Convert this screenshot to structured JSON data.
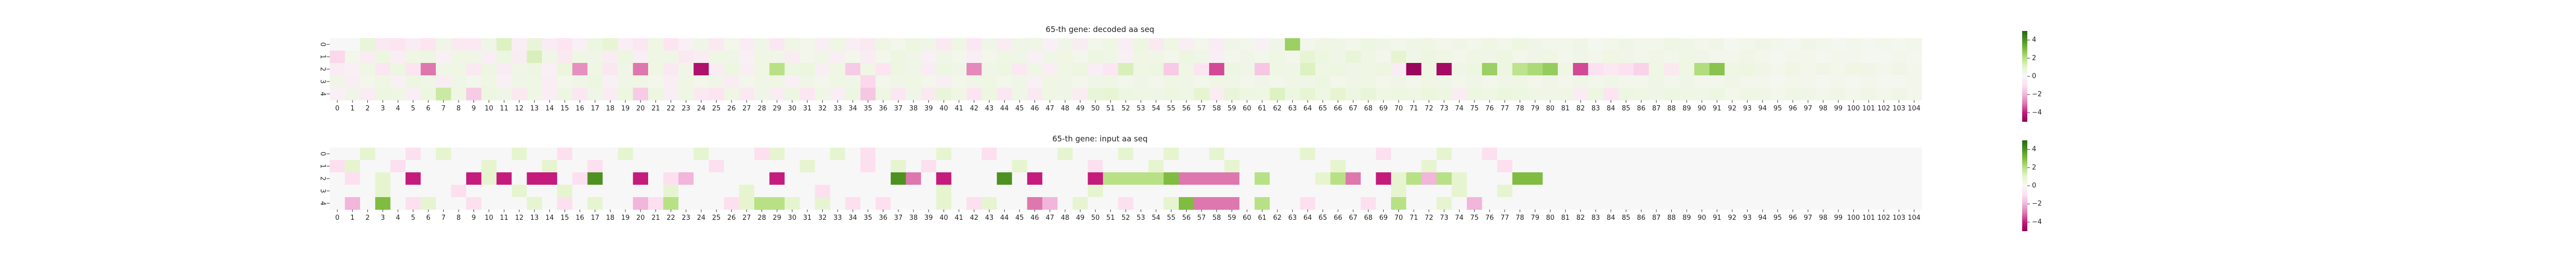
{
  "colors": {
    "negative_extreme": "#8e0152",
    "negative_mid": "#de77ae",
    "neutral": "#f7f7f7",
    "positive_mid": "#7fbc41",
    "positive_extreme": "#276419",
    "cmap": "PiYG"
  },
  "chart_data": [
    {
      "type": "heatmap",
      "title": "65-th gene: decoded aa seq",
      "xlabel": "",
      "ylabel": "",
      "x_ticks": [
        "0",
        "1",
        "2",
        "3",
        "4",
        "5",
        "6",
        "7",
        "8",
        "9",
        "10",
        "11",
        "12",
        "13",
        "14",
        "15",
        "16",
        "17",
        "18",
        "19",
        "20",
        "21",
        "22",
        "23",
        "24",
        "25",
        "26",
        "27",
        "28",
        "29",
        "30",
        "31",
        "32",
        "33",
        "34",
        "35",
        "36",
        "37",
        "38",
        "39",
        "40",
        "41",
        "42",
        "43",
        "44",
        "45",
        "46",
        "47",
        "48",
        "49",
        "50",
        "51",
        "52",
        "53",
        "54",
        "55",
        "56",
        "57",
        "58",
        "59",
        "60",
        "61",
        "62",
        "63",
        "64",
        "65",
        "66",
        "67",
        "68",
        "69",
        "70",
        "71",
        "72",
        "73",
        "74",
        "75",
        "76",
        "77",
        "78",
        "79",
        "80",
        "81",
        "82",
        "83",
        "84",
        "85",
        "86",
        "87",
        "88",
        "89",
        "90",
        "91",
        "92",
        "93",
        "94",
        "95",
        "96",
        "97",
        "98",
        "99",
        "100",
        "101",
        "102",
        "103",
        "104"
      ],
      "y_ticks": [
        "0",
        "1",
        "2",
        "3",
        "4"
      ],
      "colorbar_ticks": [
        "4",
        "2",
        "0",
        "−2",
        "−4"
      ],
      "vmin": -5,
      "vmax": 5,
      "values": [
        [
          0,
          0,
          0.8,
          -0.6,
          -0.8,
          -0.5,
          -0.8,
          0.4,
          -0.6,
          -0.6,
          0.4,
          1.2,
          -0.4,
          0.8,
          -0.5,
          -0.8,
          -0.3,
          0.6,
          0.9,
          -0.4,
          -0.7,
          0.5,
          -0.8,
          -0.3,
          0.4,
          -0.6,
          0.3,
          -0.5,
          0.4,
          -0.7,
          0.5,
          0.3,
          -0.4,
          0.5,
          -0.4,
          -0.6,
          0.5,
          0.3,
          0.6,
          0.4,
          -0.6,
          0.5,
          -0.7,
          0.4,
          -0.5,
          0.4,
          0.5,
          -0.3,
          0.4,
          -0.5,
          0.3,
          0.5,
          -0.4,
          0.6,
          -0.6,
          0.5,
          -0.4,
          0.3,
          -0.5,
          0.4,
          0.3,
          -0.3,
          0.4,
          2.5,
          0.3,
          0.5,
          0.4,
          0.3,
          0.6,
          0.4,
          0.3,
          0.4,
          0.5,
          0.3,
          0.4,
          0.3,
          0.5,
          0.3,
          0.6,
          0.4,
          0.3,
          0.3,
          0.4,
          0.2,
          0.3,
          0.4,
          0.3,
          0.3,
          0.5,
          0.4,
          0.3,
          0.4,
          0.2,
          0.3,
          0.4,
          0.3,
          0.2,
          0.4,
          0.3,
          0.2,
          0.3,
          0.2,
          0.3,
          0.2,
          0.3
        ],
        [
          -1.2,
          0.3,
          -0.5,
          0.6,
          -0.4,
          0.5,
          0.6,
          -0.3,
          0.5,
          0.4,
          -0.4,
          0.6,
          -0.5,
          1.3,
          0.4,
          -0.6,
          0.5,
          0.4,
          -0.5,
          0.6,
          -0.4,
          0.5,
          0.4,
          -0.6,
          -0.5,
          0.5,
          0.4,
          -0.3,
          0.5,
          0.4,
          -0.5,
          0.3,
          0.4,
          -0.4,
          0.3,
          -0.5,
          0.3,
          0.6,
          0.4,
          -0.3,
          0.4,
          0.3,
          -0.4,
          0.3,
          0.5,
          0.4,
          -0.3,
          0.4,
          0.5,
          0.3,
          0.6,
          0.4,
          -0.3,
          0.5,
          0.4,
          0.3,
          0.6,
          0.4,
          -0.4,
          0.3,
          0.4,
          0.3,
          0.5,
          0.3,
          0.9,
          0.6,
          0.4,
          0.8,
          0.5,
          0.3,
          1,
          0.4,
          0.6,
          0.5,
          0.3,
          0.5,
          0.4,
          0.6,
          0.3,
          0.4,
          0.5,
          0.3,
          0.4,
          0.3,
          0.5,
          0.4,
          0.3,
          0.4,
          0.3,
          0.5,
          0.4,
          0.3,
          0.3,
          0.4,
          0.3,
          0.2,
          0.3,
          0.3,
          0.2,
          0.3,
          0.3,
          0.2,
          0.2,
          0.3,
          0.2
        ],
        [
          -0.5,
          -0.3,
          0.5,
          -0.7,
          0.6,
          -0.8,
          -3,
          0.4,
          0.5,
          -0.6,
          0.6,
          -0.5,
          0.4,
          0.6,
          -0.3,
          0.7,
          -2.6,
          0.5,
          -0.7,
          0.4,
          -3,
          0.5,
          -0.6,
          0.4,
          -4.4,
          -0.5,
          0.6,
          -0.4,
          0.5,
          2,
          0.6,
          0.7,
          -0.4,
          0.5,
          -1.5,
          0.5,
          -0.8,
          0.6,
          0.4,
          -0.5,
          0.6,
          0.4,
          -2.7,
          0.4,
          0.6,
          -0.6,
          0.5,
          -0.4,
          0.5,
          0.6,
          -0.4,
          -0.7,
          1.3,
          0.5,
          0.6,
          -1.5,
          0.5,
          -0.8,
          -3.5,
          0.6,
          0.4,
          -1.6,
          0.5,
          0.4,
          1.2,
          0.5,
          0.6,
          0.4,
          0.5,
          0.6,
          -0.5,
          -4.8,
          0.5,
          -4.6,
          0.4,
          0.6,
          2.5,
          0.6,
          1.9,
          2.2,
          2.6,
          0.5,
          -3.5,
          -0.9,
          -0.6,
          -0.9,
          -1.3,
          0.5,
          -0.6,
          0.5,
          2.1,
          2.8,
          0.5,
          0.6,
          0.4,
          0.3,
          0.5,
          0.3,
          0.4,
          0.3,
          0.5,
          0.4,
          0.3,
          0.4,
          0.3
        ],
        [
          0.4,
          -0.4,
          0.3,
          0.5,
          -0.3,
          0.6,
          0.4,
          -0.5,
          0.4,
          0.3,
          0.5,
          -0.3,
          0.4,
          0.5,
          -0.4,
          0.3,
          0.4,
          0.6,
          -0.3,
          0.4,
          0.5,
          0.3,
          -0.4,
          0.5,
          0.3,
          0.4,
          -0.5,
          0.3,
          0.4,
          0.5,
          -0.3,
          0.4,
          0.3,
          0.5,
          0.4,
          -1.2,
          0.3,
          0.4,
          0.5,
          0.3,
          -0.4,
          0.3,
          0.4,
          0.5,
          0.3,
          0.4,
          -0.3,
          0.5,
          0.4,
          0.3,
          0.4,
          0.5,
          0.3,
          0.4,
          0.3,
          0.5,
          0.4,
          0.3,
          0.5,
          0.4,
          0.3,
          0.4,
          0.3,
          0.5,
          0.4,
          0.6,
          0.3,
          0.4,
          0.5,
          0.3,
          0.4,
          0.3,
          0.5,
          0.4,
          0.3,
          0.4,
          0.3,
          0.4,
          0.5,
          0.3,
          0.4,
          0.3,
          0.4,
          0.3,
          0.4,
          0.3,
          0.3,
          0.4,
          0.3,
          0.4,
          0.3,
          0.3,
          0.4,
          0.3,
          0.3,
          0.2,
          0.3,
          0.3,
          0.2,
          0.3,
          0.2,
          0.3,
          0.2,
          0.2,
          0.3
        ],
        [
          -0.3,
          0.4,
          -0.5,
          0.6,
          0.5,
          -0.4,
          0.6,
          1.6,
          0.5,
          -1.5,
          0.6,
          0.4,
          -0.6,
          0.5,
          -0.4,
          0.6,
          -0.7,
          0.4,
          -0.5,
          0.6,
          -1.5,
          0.6,
          -0.4,
          0.5,
          -0.6,
          -0.8,
          0.5,
          -0.6,
          0.4,
          -0.5,
          0.6,
          -0.7,
          0.5,
          -0.4,
          0.6,
          -1.6,
          0.5,
          -0.7,
          0.4,
          -0.6,
          0.8,
          0.5,
          -0.8,
          0.6,
          -0.7,
          0.4,
          -0.6,
          0.5,
          0.4,
          -0.5,
          0.8,
          0.9,
          0.6,
          0.5,
          0.4,
          0.6,
          0.5,
          1,
          -0.5,
          0.8,
          0.6,
          0.5,
          1.2,
          0.6,
          0.9,
          0.5,
          1,
          0.6,
          0.8,
          0.5,
          0.6,
          0.5,
          0.7,
          0.6,
          -0.5,
          0.6,
          0.5,
          0.7,
          0.6,
          0.5,
          0.4,
          0.5,
          -0.5,
          0.6,
          -0.8,
          0.6,
          0.5,
          0.4,
          0.6,
          0.5,
          0.4,
          0.6,
          0.3,
          0.5,
          0.4,
          0.3,
          0.5,
          0.4,
          0.3,
          0.4,
          0.3,
          0.4,
          0.3,
          0.4,
          0.3
        ]
      ]
    },
    {
      "type": "heatmap",
      "title": "65-th gene: input aa seq",
      "xlabel": "",
      "ylabel": "",
      "x_ticks": [
        "0",
        "1",
        "2",
        "3",
        "4",
        "5",
        "6",
        "7",
        "8",
        "9",
        "10",
        "11",
        "12",
        "13",
        "14",
        "15",
        "16",
        "17",
        "18",
        "19",
        "20",
        "21",
        "22",
        "23",
        "24",
        "25",
        "26",
        "27",
        "28",
        "29",
        "30",
        "31",
        "32",
        "33",
        "34",
        "35",
        "36",
        "37",
        "38",
        "39",
        "40",
        "41",
        "42",
        "43",
        "44",
        "45",
        "46",
        "47",
        "48",
        "49",
        "50",
        "51",
        "52",
        "53",
        "54",
        "55",
        "56",
        "57",
        "58",
        "59",
        "60",
        "61",
        "62",
        "63",
        "64",
        "65",
        "66",
        "67",
        "68",
        "69",
        "70",
        "71",
        "72",
        "73",
        "74",
        "75",
        "76",
        "77",
        "78",
        "79",
        "80",
        "81",
        "82",
        "83",
        "84",
        "85",
        "86",
        "87",
        "88",
        "89",
        "90",
        "91",
        "92",
        "93",
        "94",
        "95",
        "96",
        "97",
        "98",
        "99",
        "100",
        "101",
        "102",
        "103",
        "104"
      ],
      "y_ticks": [
        "0",
        "1",
        "2",
        "3",
        "4"
      ],
      "colorbar_ticks": [
        "4",
        "2",
        "0",
        "−2",
        "−4"
      ],
      "vmin": -5,
      "vmax": 5,
      "values": [
        [
          0,
          0,
          1,
          0,
          0,
          -1,
          0,
          1,
          0,
          0,
          0,
          0,
          1,
          0,
          0,
          -1,
          0,
          0,
          0,
          1,
          0,
          0,
          0,
          0,
          1,
          0,
          0,
          0,
          -1,
          1,
          0,
          0,
          0,
          1,
          0,
          -1,
          0,
          0,
          0,
          0,
          1,
          0,
          0,
          -1,
          0,
          0,
          0,
          0,
          1,
          0,
          0,
          0,
          1,
          0,
          0,
          1,
          0,
          0,
          1,
          0,
          0,
          0,
          0,
          0,
          1,
          0,
          0,
          0,
          0,
          -1,
          0,
          0,
          0,
          1,
          0,
          0,
          -1,
          0,
          0,
          0,
          0,
          0,
          0,
          0,
          0,
          0,
          0,
          0,
          0,
          0,
          0,
          0,
          0,
          0,
          0,
          0,
          0,
          0,
          0,
          0,
          0,
          0,
          0,
          0,
          0
        ],
        [
          -1,
          1,
          0,
          0,
          -1,
          0,
          0,
          0,
          0,
          0,
          1,
          0,
          0,
          0,
          1,
          0,
          0,
          -1,
          0,
          0,
          0,
          0,
          0,
          0,
          0,
          -1,
          0,
          0,
          0,
          0,
          0,
          1,
          0,
          0,
          0,
          -1,
          0,
          1,
          0,
          -1,
          0,
          0,
          0,
          0,
          0,
          1,
          0,
          0,
          0,
          0,
          -1,
          0,
          0,
          0,
          1,
          0,
          0,
          0,
          0,
          1,
          0,
          0,
          0,
          0,
          0,
          0,
          1,
          0,
          0,
          0,
          0,
          0,
          1,
          0,
          0,
          0,
          0,
          -1,
          0,
          0,
          0,
          0,
          0,
          0,
          0,
          0,
          0,
          0,
          0,
          0,
          0,
          0,
          0,
          0,
          0,
          0,
          0,
          0,
          0,
          0,
          0,
          0,
          0,
          0,
          0
        ],
        [
          0,
          -1,
          0,
          1,
          0,
          -4,
          0,
          0,
          0,
          -4,
          1,
          -4,
          0,
          -4,
          -4,
          0,
          -1,
          4,
          0,
          0,
          -4,
          0,
          -1,
          -2,
          0,
          0,
          0,
          0,
          0,
          -4,
          0,
          0,
          0,
          0,
          0,
          0,
          0,
          4,
          -3,
          0,
          -4,
          0,
          0,
          0,
          4,
          0,
          -4,
          0,
          0,
          0,
          -4,
          2,
          2,
          2,
          2,
          3,
          -3,
          -3,
          -3,
          -3,
          0,
          2,
          0,
          0,
          0,
          1,
          2,
          -3,
          0,
          -4,
          1,
          2,
          -2,
          2,
          1,
          0,
          0,
          0,
          3,
          3,
          0,
          0,
          0,
          0,
          0,
          0,
          0,
          0,
          0,
          0,
          0,
          0,
          0,
          0,
          0,
          0,
          0,
          0,
          0,
          0,
          0,
          0,
          0,
          0,
          0
        ],
        [
          0,
          0,
          0,
          1,
          0,
          0,
          0,
          0,
          -1,
          0,
          0,
          0,
          1,
          0,
          0,
          1,
          0,
          0,
          0,
          0,
          0,
          0,
          1,
          0,
          0,
          0,
          0,
          1,
          0,
          0,
          0,
          0,
          -1,
          0,
          0,
          0,
          0,
          0,
          0,
          0,
          1,
          0,
          0,
          0,
          0,
          0,
          0,
          0,
          0,
          0,
          1,
          0,
          0,
          0,
          0,
          0,
          0,
          0,
          0,
          0,
          0,
          0,
          0,
          0,
          0,
          0,
          0,
          0,
          0,
          0,
          1,
          0,
          0,
          0,
          1,
          0,
          0,
          1,
          0,
          0,
          0,
          0,
          0,
          0,
          0,
          0,
          0,
          0,
          0,
          0,
          0,
          0,
          0,
          0,
          0,
          0,
          0,
          0,
          0,
          0,
          0,
          0,
          0,
          0,
          0
        ],
        [
          0,
          -2,
          0,
          3,
          0,
          -1,
          1,
          0,
          0,
          -1,
          0,
          0,
          0,
          1,
          0,
          -1,
          0,
          1,
          0,
          0,
          -2,
          -1,
          2,
          0,
          0,
          0,
          -1,
          1,
          2,
          2,
          1,
          0,
          1,
          0,
          -1,
          0,
          -1,
          0,
          0,
          0,
          1,
          0,
          -1,
          1,
          0,
          0,
          -3,
          -2,
          0,
          1,
          0,
          0,
          -1,
          0,
          0,
          1,
          3,
          -3,
          -3,
          -3,
          0,
          2,
          0,
          0,
          -1,
          0,
          0,
          0,
          -1,
          0,
          2,
          0,
          0,
          1,
          0,
          -2,
          0,
          0,
          0,
          0,
          0,
          0,
          0,
          0,
          0,
          0,
          0,
          0,
          0,
          0,
          0,
          0,
          0,
          0,
          0,
          0,
          0,
          0,
          0,
          0,
          0,
          0,
          0,
          0,
          0
        ]
      ]
    }
  ]
}
